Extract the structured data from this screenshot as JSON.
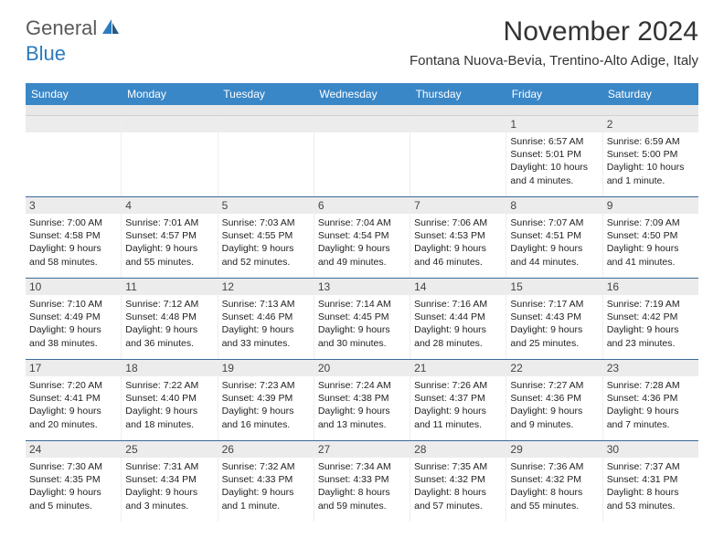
{
  "logo": {
    "text1": "General",
    "text2": "Blue"
  },
  "title": "November 2024",
  "location": "Fontana Nuova-Bevia, Trentino-Alto Adige, Italy",
  "colors": {
    "header_bg": "#3a87c7",
    "header_text": "#ffffff",
    "subhead_bg": "#e8e8e8",
    "daynum_bg": "#ececec",
    "week_border": "#3a6a9a",
    "logo_gray": "#5a5a5a",
    "logo_blue": "#2b7bbf"
  },
  "day_headers": [
    "Sunday",
    "Monday",
    "Tuesday",
    "Wednesday",
    "Thursday",
    "Friday",
    "Saturday"
  ],
  "weeks": [
    [
      {
        "n": "",
        "sr": "",
        "ss": "",
        "dl": ""
      },
      {
        "n": "",
        "sr": "",
        "ss": "",
        "dl": ""
      },
      {
        "n": "",
        "sr": "",
        "ss": "",
        "dl": ""
      },
      {
        "n": "",
        "sr": "",
        "ss": "",
        "dl": ""
      },
      {
        "n": "",
        "sr": "",
        "ss": "",
        "dl": ""
      },
      {
        "n": "1",
        "sr": "Sunrise: 6:57 AM",
        "ss": "Sunset: 5:01 PM",
        "dl": "Daylight: 10 hours and 4 minutes."
      },
      {
        "n": "2",
        "sr": "Sunrise: 6:59 AM",
        "ss": "Sunset: 5:00 PM",
        "dl": "Daylight: 10 hours and 1 minute."
      }
    ],
    [
      {
        "n": "3",
        "sr": "Sunrise: 7:00 AM",
        "ss": "Sunset: 4:58 PM",
        "dl": "Daylight: 9 hours and 58 minutes."
      },
      {
        "n": "4",
        "sr": "Sunrise: 7:01 AM",
        "ss": "Sunset: 4:57 PM",
        "dl": "Daylight: 9 hours and 55 minutes."
      },
      {
        "n": "5",
        "sr": "Sunrise: 7:03 AM",
        "ss": "Sunset: 4:55 PM",
        "dl": "Daylight: 9 hours and 52 minutes."
      },
      {
        "n": "6",
        "sr": "Sunrise: 7:04 AM",
        "ss": "Sunset: 4:54 PM",
        "dl": "Daylight: 9 hours and 49 minutes."
      },
      {
        "n": "7",
        "sr": "Sunrise: 7:06 AM",
        "ss": "Sunset: 4:53 PM",
        "dl": "Daylight: 9 hours and 46 minutes."
      },
      {
        "n": "8",
        "sr": "Sunrise: 7:07 AM",
        "ss": "Sunset: 4:51 PM",
        "dl": "Daylight: 9 hours and 44 minutes."
      },
      {
        "n": "9",
        "sr": "Sunrise: 7:09 AM",
        "ss": "Sunset: 4:50 PM",
        "dl": "Daylight: 9 hours and 41 minutes."
      }
    ],
    [
      {
        "n": "10",
        "sr": "Sunrise: 7:10 AM",
        "ss": "Sunset: 4:49 PM",
        "dl": "Daylight: 9 hours and 38 minutes."
      },
      {
        "n": "11",
        "sr": "Sunrise: 7:12 AM",
        "ss": "Sunset: 4:48 PM",
        "dl": "Daylight: 9 hours and 36 minutes."
      },
      {
        "n": "12",
        "sr": "Sunrise: 7:13 AM",
        "ss": "Sunset: 4:46 PM",
        "dl": "Daylight: 9 hours and 33 minutes."
      },
      {
        "n": "13",
        "sr": "Sunrise: 7:14 AM",
        "ss": "Sunset: 4:45 PM",
        "dl": "Daylight: 9 hours and 30 minutes."
      },
      {
        "n": "14",
        "sr": "Sunrise: 7:16 AM",
        "ss": "Sunset: 4:44 PM",
        "dl": "Daylight: 9 hours and 28 minutes."
      },
      {
        "n": "15",
        "sr": "Sunrise: 7:17 AM",
        "ss": "Sunset: 4:43 PM",
        "dl": "Daylight: 9 hours and 25 minutes."
      },
      {
        "n": "16",
        "sr": "Sunrise: 7:19 AM",
        "ss": "Sunset: 4:42 PM",
        "dl": "Daylight: 9 hours and 23 minutes."
      }
    ],
    [
      {
        "n": "17",
        "sr": "Sunrise: 7:20 AM",
        "ss": "Sunset: 4:41 PM",
        "dl": "Daylight: 9 hours and 20 minutes."
      },
      {
        "n": "18",
        "sr": "Sunrise: 7:22 AM",
        "ss": "Sunset: 4:40 PM",
        "dl": "Daylight: 9 hours and 18 minutes."
      },
      {
        "n": "19",
        "sr": "Sunrise: 7:23 AM",
        "ss": "Sunset: 4:39 PM",
        "dl": "Daylight: 9 hours and 16 minutes."
      },
      {
        "n": "20",
        "sr": "Sunrise: 7:24 AM",
        "ss": "Sunset: 4:38 PM",
        "dl": "Daylight: 9 hours and 13 minutes."
      },
      {
        "n": "21",
        "sr": "Sunrise: 7:26 AM",
        "ss": "Sunset: 4:37 PM",
        "dl": "Daylight: 9 hours and 11 minutes."
      },
      {
        "n": "22",
        "sr": "Sunrise: 7:27 AM",
        "ss": "Sunset: 4:36 PM",
        "dl": "Daylight: 9 hours and 9 minutes."
      },
      {
        "n": "23",
        "sr": "Sunrise: 7:28 AM",
        "ss": "Sunset: 4:36 PM",
        "dl": "Daylight: 9 hours and 7 minutes."
      }
    ],
    [
      {
        "n": "24",
        "sr": "Sunrise: 7:30 AM",
        "ss": "Sunset: 4:35 PM",
        "dl": "Daylight: 9 hours and 5 minutes."
      },
      {
        "n": "25",
        "sr": "Sunrise: 7:31 AM",
        "ss": "Sunset: 4:34 PM",
        "dl": "Daylight: 9 hours and 3 minutes."
      },
      {
        "n": "26",
        "sr": "Sunrise: 7:32 AM",
        "ss": "Sunset: 4:33 PM",
        "dl": "Daylight: 9 hours and 1 minute."
      },
      {
        "n": "27",
        "sr": "Sunrise: 7:34 AM",
        "ss": "Sunset: 4:33 PM",
        "dl": "Daylight: 8 hours and 59 minutes."
      },
      {
        "n": "28",
        "sr": "Sunrise: 7:35 AM",
        "ss": "Sunset: 4:32 PM",
        "dl": "Daylight: 8 hours and 57 minutes."
      },
      {
        "n": "29",
        "sr": "Sunrise: 7:36 AM",
        "ss": "Sunset: 4:32 PM",
        "dl": "Daylight: 8 hours and 55 minutes."
      },
      {
        "n": "30",
        "sr": "Sunrise: 7:37 AM",
        "ss": "Sunset: 4:31 PM",
        "dl": "Daylight: 8 hours and 53 minutes."
      }
    ]
  ]
}
